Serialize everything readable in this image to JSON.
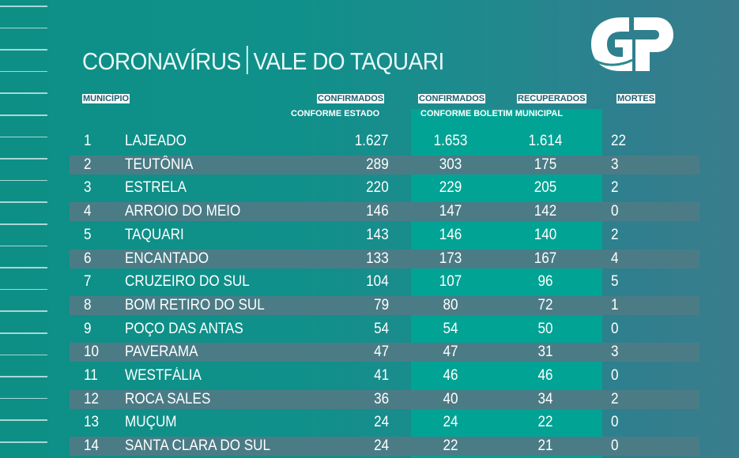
{
  "title": {
    "left": "CORONAVÍRUS",
    "right": "VALE DO TAQUARI"
  },
  "logo": {
    "text": "GP"
  },
  "headers": {
    "municipio": "MUNICÍPIO",
    "confirmados_estado": "CONFIRMADOS",
    "conforme_estado": "CONFORME ESTADO",
    "confirmados_boletim": "CONFIRMADOS",
    "recuperados": "RECUPERADOS",
    "conforme_boletim": "CONFORME BOLETIM MUNICIPAL",
    "mortes": "MORTES"
  },
  "colors": {
    "background": "#0d8f86",
    "highlight": "#00a394",
    "band": "#4b7c86"
  },
  "rows": [
    {
      "n": "1",
      "name": "LAJEADO",
      "estado": "1.627",
      "boletim": "1.653",
      "recuperados": "1.614",
      "mortes": "22"
    },
    {
      "n": "2",
      "name": "TEUTÔNIA",
      "estado": "289",
      "boletim": "303",
      "recuperados": "175",
      "mortes": "3"
    },
    {
      "n": "3",
      "name": "ESTRELA",
      "estado": "220",
      "boletim": "229",
      "recuperados": "205",
      "mortes": "2"
    },
    {
      "n": "4",
      "name": "ARROIO DO MEIO",
      "estado": "146",
      "boletim": "147",
      "recuperados": "142",
      "mortes": "0"
    },
    {
      "n": "5",
      "name": "TAQUARI",
      "estado": "143",
      "boletim": "146",
      "recuperados": "140",
      "mortes": "2"
    },
    {
      "n": "6",
      "name": "ENCANTADO",
      "estado": "133",
      "boletim": "173",
      "recuperados": "167",
      "mortes": "4"
    },
    {
      "n": "7",
      "name": "CRUZEIRO DO SUL",
      "estado": "104",
      "boletim": "107",
      "recuperados": "96",
      "mortes": "5"
    },
    {
      "n": "8",
      "name": "BOM RETIRO DO SUL",
      "estado": "79",
      "boletim": "80",
      "recuperados": "72",
      "mortes": "1"
    },
    {
      "n": "9",
      "name": "POÇO DAS ANTAS",
      "estado": "54",
      "boletim": "54",
      "recuperados": "50",
      "mortes": "0"
    },
    {
      "n": "10",
      "name": "PAVERAMA",
      "estado": "47",
      "boletim": "47",
      "recuperados": "31",
      "mortes": "3"
    },
    {
      "n": "11",
      "name": "WESTFÁLIA",
      "estado": "41",
      "boletim": "46",
      "recuperados": "46",
      "mortes": "0"
    },
    {
      "n": "12",
      "name": "ROCA SALES",
      "estado": "36",
      "boletim": "40",
      "recuperados": "34",
      "mortes": "2"
    },
    {
      "n": "13",
      "name": "MUÇUM",
      "estado": "24",
      "boletim": "24",
      "recuperados": "22",
      "mortes": "0"
    },
    {
      "n": "14",
      "name": "SANTA CLARA DO SUL",
      "estado": "24",
      "boletim": "22",
      "recuperados": "21",
      "mortes": "0"
    }
  ]
}
